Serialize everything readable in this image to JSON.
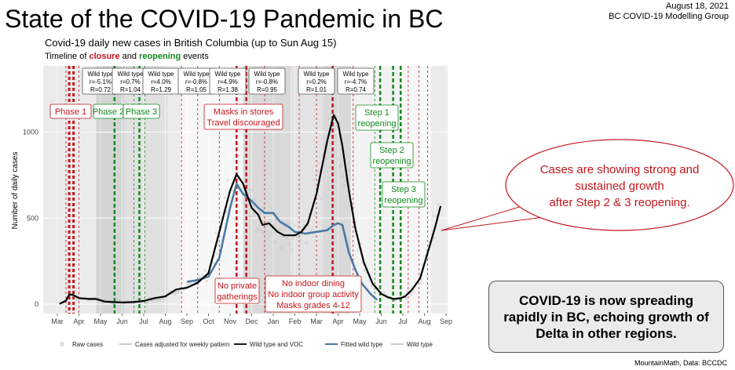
{
  "slide": {
    "title": "State of the COVID-19 Pandemic in BC",
    "date": "August 18, 2021",
    "org": "BC COVID-19 Modelling Group",
    "source": "MountainMath, Data: BCCDC",
    "takeaway": "COVID-19 is now spreading rapidly in BC, echoing growth of Delta in other regions.",
    "callout": "Cases are showing strong and sustained growth after Step 2 & 3 reopening."
  },
  "colors": {
    "closure": "#c4161c",
    "reopening": "#118a1b",
    "fit": "#4a7aa6",
    "main_line": "#000000",
    "raw": "#bdbdbd"
  },
  "chart_data": {
    "type": "line",
    "title": "Covid-19 daily new cases in British Columbia (up to Sun Aug 15)",
    "subtitle_parts": [
      "Timeline of ",
      "closure",
      " and ",
      "reopening",
      " events"
    ],
    "xlabel": "",
    "ylabel": "Number of daily cases",
    "x_months": [
      "Mar",
      "Apr",
      "May",
      "Jun",
      "Jul",
      "Aug",
      "Sep",
      "Oct",
      "Nov",
      "Dec",
      "Jan",
      "Feb",
      "Mar",
      "Apr",
      "May",
      "Jun",
      "Jul",
      "Aug",
      "Sep"
    ],
    "ylim": [
      -60,
      1260
    ],
    "yticks": [
      0,
      500,
      1000
    ],
    "grid": true,
    "series": [
      {
        "name": "Wild type and VOC",
        "x": [
          0.1,
          0.4,
          0.55,
          0.7,
          1.0,
          1.5,
          1.8,
          2.2,
          2.6,
          3.0,
          3.5,
          4.0,
          4.5,
          5.0,
          5.5,
          6.0,
          6.5,
          7.0,
          7.5,
          8.0,
          8.3,
          8.6,
          9.0,
          9.3,
          9.5,
          9.8,
          10.2,
          10.5,
          11.0,
          11.3,
          11.6,
          12.0,
          12.5,
          12.8,
          13.0,
          13.2,
          13.5,
          13.8,
          14.2,
          14.6,
          15.0,
          15.3,
          15.6,
          15.9,
          16.1,
          16.4,
          16.8,
          17.2,
          17.5,
          17.75
        ],
        "values": [
          2,
          20,
          55,
          55,
          35,
          30,
          30,
          15,
          12,
          10,
          12,
          18,
          35,
          45,
          85,
          95,
          125,
          180,
          420,
          660,
          755,
          700,
          560,
          520,
          460,
          470,
          420,
          400,
          400,
          420,
          470,
          640,
          950,
          1100,
          1050,
          920,
          660,
          440,
          240,
          120,
          60,
          40,
          30,
          35,
          45,
          80,
          150,
          320,
          450,
          570
        ]
      },
      {
        "name": "Fitted wild type",
        "x": [
          6.0,
          6.5,
          7.0,
          7.5,
          8.0,
          8.3,
          8.6,
          9.0,
          9.3,
          9.6,
          10.0,
          10.3,
          10.7,
          11.0,
          11.5,
          12.0,
          12.5,
          12.8,
          13.0,
          13.2,
          13.5,
          13.8,
          14.1,
          14.5,
          14.8
        ],
        "values": [
          130,
          140,
          160,
          270,
          560,
          700,
          640,
          600,
          560,
          530,
          530,
          480,
          450,
          420,
          410,
          420,
          430,
          460,
          470,
          460,
          300,
          200,
          120,
          60,
          25
        ]
      }
    ],
    "wild_type_boxes": [
      {
        "label": "Wild type",
        "r": "r=-5.1%",
        "R": "R=0.72"
      },
      {
        "label": "Wild type",
        "r": "r=0.7%",
        "R": "R=1.04"
      },
      {
        "label": "Wild type",
        "r": "r=4.0%",
        "R": "R=1.29"
      },
      {
        "label": "Wild type",
        "r": "r=-0.8%",
        "R": "R=1.05"
      },
      {
        "label": "Wild type",
        "r": "r=4.9%",
        "R": "R=1.38"
      },
      {
        "label": "Wild type",
        "r": "r=-0.8%",
        "R": "R=0.95"
      },
      {
        "label": "Wild type",
        "r": "r=0.2%",
        "R": "R=1.01"
      },
      {
        "label": "Wild type",
        "r": "r=-4.7%",
        "R": "R=0.74"
      }
    ],
    "event_labels": [
      {
        "text": [
          "Phase 1"
        ],
        "kind": "closure"
      },
      {
        "text": [
          "Phase 2"
        ],
        "kind": "reopening"
      },
      {
        "text": [
          "Phase 3"
        ],
        "kind": "reopening"
      },
      {
        "text": [
          "Masks in stores",
          "Travel discouraged"
        ],
        "kind": "closure"
      },
      {
        "text": [
          "No private",
          "gatherings"
        ],
        "kind": "closure"
      },
      {
        "text": [
          "No indoor dining",
          "No indoor group activity",
          "Masks grades 4-12"
        ],
        "kind": "closure"
      },
      {
        "text": [
          "Step 1",
          "reopening"
        ],
        "kind": "reopening"
      },
      {
        "text": [
          "Step 2",
          "reopening"
        ],
        "kind": "reopening"
      },
      {
        "text": [
          "Step 3",
          "reopening"
        ],
        "kind": "reopening"
      }
    ],
    "legend": [
      {
        "name": "Raw cases",
        "style": "point"
      },
      {
        "name": "Cases adjusted for weekly pattern",
        "style": "thin-line"
      },
      {
        "name": "Wild type and VOC",
        "style": "thick-line"
      },
      {
        "name": "Fitted wild type",
        "style": "blue-line"
      },
      {
        "name": "Wild type",
        "style": "grey-line"
      }
    ]
  }
}
